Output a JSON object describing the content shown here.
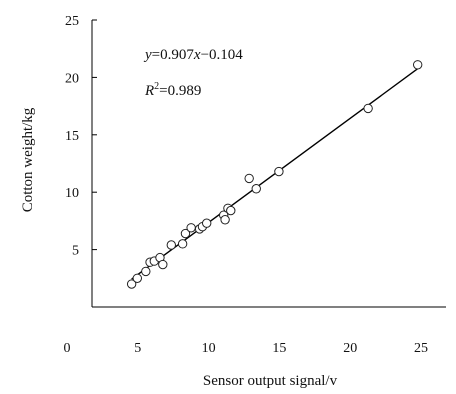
{
  "chart_data": {
    "type": "scatter",
    "xlabel": "Sensor output signal/v",
    "ylabel": "Cotton weight/kg",
    "xlim": [
      0,
      25
    ],
    "ylim": [
      0,
      25
    ],
    "x_ticks": [
      "0",
      "5",
      "10",
      "15",
      "20",
      "25"
    ],
    "y_ticks": [
      "5",
      "10",
      "15",
      "20",
      "25"
    ],
    "grid": false,
    "legend": "none",
    "colors": {
      "axis": "#000000",
      "marker": "#222222",
      "fit_line": "#000000"
    },
    "annotations": {
      "equation_prefix": "y",
      "equation_body": "=0.907",
      "equation_x": "x",
      "equation_rest": "−0.104",
      "r2_base": "R",
      "r2_sup": "2",
      "r2_rest": "=0.989"
    },
    "fit": {
      "slope": 0.907,
      "intercept": -0.104,
      "x_range": [
        2.8,
        23.0
      ]
    },
    "points": [
      {
        "x": 2.8,
        "y": 2.0
      },
      {
        "x": 3.2,
        "y": 2.5
      },
      {
        "x": 3.8,
        "y": 3.1
      },
      {
        "x": 4.1,
        "y": 3.9
      },
      {
        "x": 4.4,
        "y": 4.0
      },
      {
        "x": 4.8,
        "y": 4.3
      },
      {
        "x": 5.0,
        "y": 3.7
      },
      {
        "x": 5.6,
        "y": 5.4
      },
      {
        "x": 6.4,
        "y": 5.5
      },
      {
        "x": 6.6,
        "y": 6.4
      },
      {
        "x": 7.0,
        "y": 6.9
      },
      {
        "x": 7.6,
        "y": 6.8
      },
      {
        "x": 7.8,
        "y": 7.0
      },
      {
        "x": 8.1,
        "y": 7.3
      },
      {
        "x": 9.3,
        "y": 8.0
      },
      {
        "x": 9.4,
        "y": 7.6
      },
      {
        "x": 9.6,
        "y": 8.6
      },
      {
        "x": 9.8,
        "y": 8.4
      },
      {
        "x": 11.1,
        "y": 11.2
      },
      {
        "x": 11.6,
        "y": 10.3
      },
      {
        "x": 13.2,
        "y": 11.8
      },
      {
        "x": 19.5,
        "y": 17.3
      },
      {
        "x": 23.0,
        "y": 21.1
      }
    ]
  }
}
